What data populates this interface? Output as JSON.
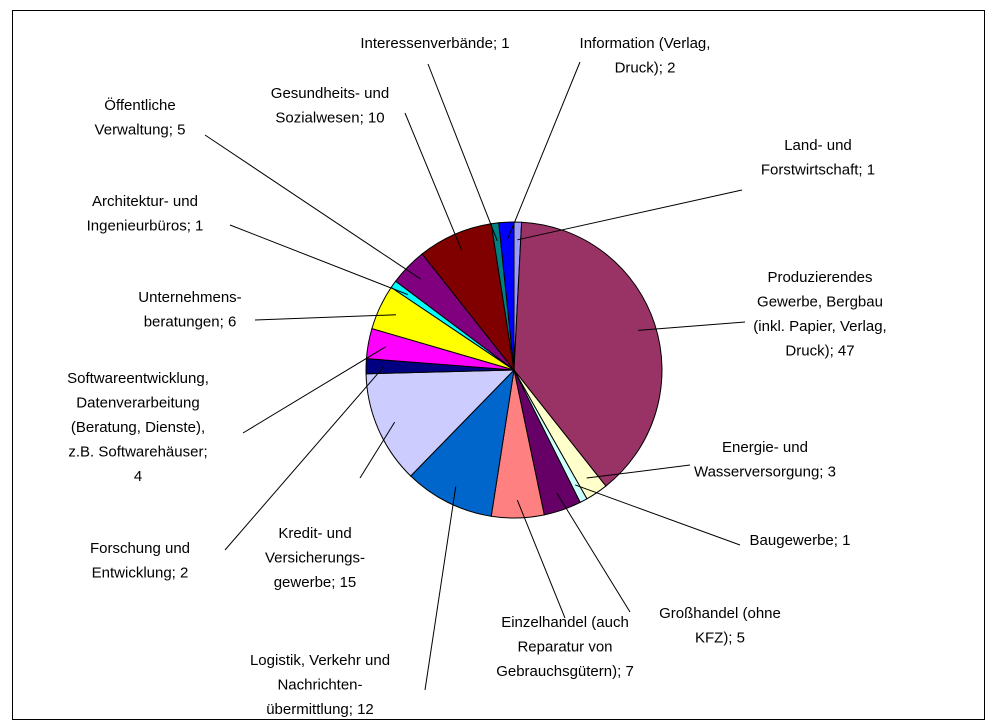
{
  "chart_data": {
    "type": "pie",
    "value_labels": [
      [
        "Land- und",
        "Forstwirtschaft; 1"
      ],
      [
        "Produzierendes",
        "Gewerbe, Bergbau",
        "(inkl. Papier, Verlag,",
        "Druck); 47"
      ],
      [
        "Energie- und",
        "Wasserversorgung; 3"
      ],
      [
        "Baugewerbe; 1"
      ],
      [
        "Großhandel (ohne",
        "KFZ); 5"
      ],
      [
        "Einzelhandel (auch",
        "Reparatur von",
        "Gebrauchsgütern); 7"
      ],
      [
        "Logistik, Verkehr und",
        "Nachrichten-",
        "übermittlung; 12"
      ],
      [
        "Kredit- und",
        "Versicherungs-",
        "gewerbe; 15"
      ],
      [
        "Forschung und",
        "Entwicklung; 2"
      ],
      [
        "Softwareentwicklung,",
        "Datenverarbeitung",
        "(Beratung, Dienste),",
        "z.B. Softwarehäuser;",
        "4"
      ],
      [
        "Unternehmens-",
        "beratungen; 6"
      ],
      [
        "Architektur- und",
        "Ingenieurbüros; 1"
      ],
      [
        "Öffentliche",
        "Verwaltung; 5"
      ],
      [
        "Gesundheits- und",
        "Sozialwesen; 10"
      ],
      [
        "Interessenverbände; 1"
      ],
      [
        "Information (Verlag,",
        "Druck); 2"
      ]
    ],
    "values": [
      1,
      47,
      3,
      1,
      5,
      7,
      12,
      15,
      2,
      4,
      6,
      1,
      5,
      10,
      1,
      2
    ],
    "colors": [
      "#9999FF",
      "#993366",
      "#FFFFCC",
      "#CCFFFF",
      "#660066",
      "#FF8080",
      "#0066CC",
      "#CCCCFF",
      "#000080",
      "#FF00FF",
      "#FFFF00",
      "#00FFFF",
      "#800080",
      "#800000",
      "#008080",
      "#0000FF"
    ]
  }
}
